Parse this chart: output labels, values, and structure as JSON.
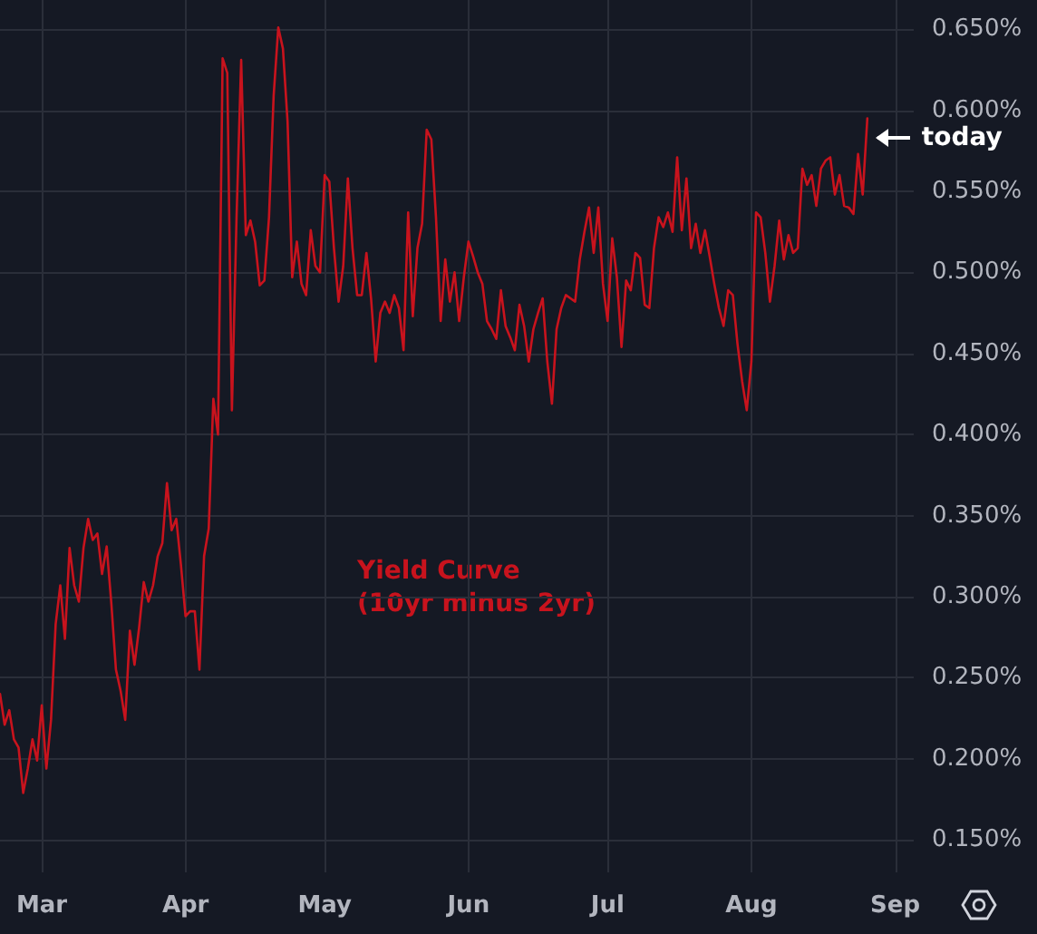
{
  "chart_data": {
    "type": "line",
    "x": [
      "--02-20",
      "--02-21",
      "--02-22",
      "--02-23",
      "--02-24",
      "--02-25",
      "--02-26",
      "--02-27",
      "--02-28",
      "--03-01",
      "--03-02",
      "--03-03",
      "--03-04",
      "--03-05",
      "--03-06",
      "--03-07",
      "--03-08",
      "--03-09",
      "--03-10",
      "--03-11",
      "--03-12",
      "--03-13",
      "--03-14",
      "--03-15",
      "--03-16",
      "--03-17",
      "--03-18",
      "--03-19",
      "--03-20",
      "--03-21",
      "--03-22",
      "--03-23",
      "--03-24",
      "--03-25",
      "--03-26",
      "--03-27",
      "--03-28",
      "--03-29",
      "--03-30",
      "--03-31",
      "--04-01",
      "--04-02",
      "--04-03",
      "--04-04",
      "--04-05",
      "--04-06",
      "--04-07",
      "--04-08",
      "--04-09",
      "--04-10",
      "--04-11",
      "--04-12",
      "--04-13",
      "--04-14",
      "--04-15",
      "--04-16",
      "--04-17",
      "--04-18",
      "--04-19",
      "--04-20",
      "--04-21",
      "--04-22",
      "--04-23",
      "--04-24",
      "--04-25",
      "--04-26",
      "--04-27",
      "--04-28",
      "--04-29",
      "--04-30",
      "--05-01",
      "--05-02",
      "--05-03",
      "--05-04",
      "--05-05",
      "--05-06",
      "--05-07",
      "--05-08",
      "--05-09",
      "--05-10",
      "--05-11",
      "--05-12",
      "--05-13",
      "--05-14",
      "--05-15",
      "--05-16",
      "--05-17",
      "--05-18",
      "--05-19",
      "--05-20",
      "--05-21",
      "--05-22",
      "--05-23",
      "--05-24",
      "--05-25",
      "--05-26",
      "--05-27",
      "--05-28",
      "--05-29",
      "--05-30",
      "--05-31",
      "--06-01",
      "--06-02",
      "--06-03",
      "--06-04",
      "--06-05",
      "--06-06",
      "--06-07",
      "--06-08",
      "--06-09",
      "--06-10",
      "--06-11",
      "--06-12",
      "--06-13",
      "--06-14",
      "--06-15",
      "--06-16",
      "--06-17",
      "--06-18",
      "--06-19",
      "--06-20",
      "--06-21",
      "--06-22",
      "--06-23",
      "--06-24",
      "--06-25",
      "--06-26",
      "--06-27",
      "--06-28",
      "--06-29",
      "--06-30",
      "--07-01",
      "--07-02",
      "--07-03",
      "--07-04",
      "--07-05",
      "--07-06",
      "--07-07",
      "--07-08",
      "--07-09",
      "--07-10",
      "--07-11",
      "--07-12",
      "--07-13",
      "--07-14",
      "--07-15",
      "--07-16",
      "--07-17",
      "--07-18",
      "--07-19",
      "--07-20",
      "--07-21",
      "--07-22",
      "--07-23",
      "--07-24",
      "--07-25",
      "--07-26",
      "--07-27",
      "--07-28",
      "--07-29",
      "--07-30",
      "--07-31",
      "--08-01",
      "--08-02",
      "--08-03",
      "--08-04",
      "--08-05",
      "--08-06",
      "--08-07",
      "--08-08",
      "--08-09",
      "--08-10",
      "--08-11",
      "--08-12",
      "--08-13",
      "--08-14",
      "--08-15",
      "--08-16",
      "--08-17",
      "--08-18",
      "--08-19",
      "--08-20",
      "--08-21",
      "--08-22",
      "--08-23",
      "--08-24",
      "--08-25",
      "--08-26"
    ],
    "series": [
      {
        "name": "Yield Curve (10yr minus 2yr)",
        "color": "#c8131d",
        "values": [
          0.24,
          0.221,
          0.23,
          0.212,
          0.207,
          0.179,
          0.194,
          0.212,
          0.199,
          0.233,
          0.194,
          0.224,
          0.283,
          0.307,
          0.274,
          0.33,
          0.307,
          0.297,
          0.33,
          0.348,
          0.335,
          0.339,
          0.314,
          0.331,
          0.296,
          0.255,
          0.242,
          0.224,
          0.279,
          0.258,
          0.281,
          0.309,
          0.297,
          0.307,
          0.325,
          0.333,
          0.37,
          0.341,
          0.348,
          0.32,
          0.288,
          0.291,
          0.291,
          0.255,
          0.325,
          0.342,
          0.422,
          0.4,
          0.632,
          0.623,
          0.415,
          0.534,
          0.631,
          0.523,
          0.532,
          0.519,
          0.492,
          0.495,
          0.534,
          0.609,
          0.651,
          0.638,
          0.593,
          0.497,
          0.519,
          0.493,
          0.486,
          0.526,
          0.504,
          0.5,
          0.56,
          0.556,
          0.515,
          0.482,
          0.504,
          0.558,
          0.515,
          0.486,
          0.486,
          0.512,
          0.484,
          0.445,
          0.475,
          0.482,
          0.475,
          0.486,
          0.478,
          0.452,
          0.537,
          0.473,
          0.515,
          0.53,
          0.588,
          0.582,
          0.534,
          0.47,
          0.508,
          0.482,
          0.5,
          0.47,
          0.497,
          0.519,
          0.51,
          0.5,
          0.493,
          0.47,
          0.465,
          0.459,
          0.489,
          0.467,
          0.46,
          0.452,
          0.48,
          0.467,
          0.445,
          0.465,
          0.475,
          0.484,
          0.445,
          0.419,
          0.465,
          0.478,
          0.486,
          0.484,
          0.482,
          0.508,
          0.525,
          0.54,
          0.512,
          0.54,
          0.493,
          0.47,
          0.521,
          0.497,
          0.454,
          0.495,
          0.489,
          0.512,
          0.509,
          0.48,
          0.478,
          0.515,
          0.534,
          0.528,
          0.537,
          0.525,
          0.571,
          0.526,
          0.558,
          0.515,
          0.53,
          0.512,
          0.526,
          0.51,
          0.493,
          0.478,
          0.467,
          0.489,
          0.486,
          0.456,
          0.433,
          0.415,
          0.445,
          0.537,
          0.534,
          0.512,
          0.482,
          0.504,
          0.532,
          0.508,
          0.523,
          0.512,
          0.515,
          0.564,
          0.554,
          0.56,
          0.541,
          0.564,
          0.569,
          0.571,
          0.548,
          0.56,
          0.541,
          0.54,
          0.536,
          0.573,
          0.548,
          0.595
        ]
      }
    ],
    "xlim": [
      "--02-20",
      "--09-05"
    ],
    "xticks": [
      {
        "value": "--03-01",
        "label": "Mar"
      },
      {
        "value": "--04-01",
        "label": "Apr"
      },
      {
        "value": "--05-01",
        "label": "May"
      },
      {
        "value": "--06-01",
        "label": "Jun"
      },
      {
        "value": "--07-01",
        "label": "Jul"
      },
      {
        "value": "--08-01",
        "label": "Aug"
      },
      {
        "value": "--09-01",
        "label": "Sep"
      }
    ],
    "ylim": [
      0.13,
      0.668
    ],
    "yticks": [
      {
        "value": 0.15,
        "label": "0.150%"
      },
      {
        "value": 0.2,
        "label": "0.200%"
      },
      {
        "value": 0.25,
        "label": "0.250%"
      },
      {
        "value": 0.3,
        "label": "0.300%"
      },
      {
        "value": 0.35,
        "label": "0.350%"
      },
      {
        "value": 0.4,
        "label": "0.400%"
      },
      {
        "value": 0.45,
        "label": "0.450%"
      },
      {
        "value": 0.5,
        "label": "0.500%"
      },
      {
        "value": 0.55,
        "label": "0.550%"
      },
      {
        "value": 0.6,
        "label": "0.600%"
      },
      {
        "value": 0.65,
        "label": "0.650%"
      }
    ],
    "annotations": [
      {
        "text": "today",
        "x": "--08-26",
        "y": 0.58
      }
    ],
    "grid": true,
    "legend": false,
    "marker": "none",
    "line_style": "solid"
  }
}
